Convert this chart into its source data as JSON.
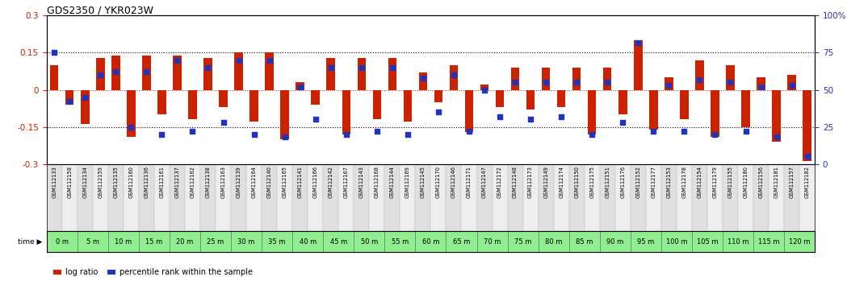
{
  "title": "GDS2350 / YKR023W",
  "gsm_labels": [
    "GSM112133",
    "GSM112158",
    "GSM112134",
    "GSM112159",
    "GSM112135",
    "GSM112160",
    "GSM112136",
    "GSM112161",
    "GSM112137",
    "GSM112162",
    "GSM112138",
    "GSM112163",
    "GSM112139",
    "GSM112164",
    "GSM112140",
    "GSM112165",
    "GSM112141",
    "GSM112166",
    "GSM112142",
    "GSM112167",
    "GSM112143",
    "GSM112168",
    "GSM112144",
    "GSM112169",
    "GSM112145",
    "GSM112170",
    "GSM112146",
    "GSM112171",
    "GSM112147",
    "GSM112172",
    "GSM112148",
    "GSM112173",
    "GSM112149",
    "GSM112174",
    "GSM112150",
    "GSM112175",
    "GSM112151",
    "GSM112176",
    "GSM112152",
    "GSM112177",
    "GSM112153",
    "GSM112178",
    "GSM112154",
    "GSM112179",
    "GSM112155",
    "GSM112180",
    "GSM112156",
    "GSM112181",
    "GSM112157",
    "GSM112182"
  ],
  "time_labels": [
    "0 m",
    "5 m",
    "10 m",
    "15 m",
    "20 m",
    "25 m",
    "30 m",
    "35 m",
    "40 m",
    "45 m",
    "50 m",
    "55 m",
    "60 m",
    "65 m",
    "70 m",
    "75 m",
    "80 m",
    "85 m",
    "90 m",
    "95 m",
    "100 m",
    "105 m",
    "110 m",
    "115 m",
    "120 m"
  ],
  "log_ratio": [
    0.1,
    -0.06,
    -0.14,
    0.13,
    0.14,
    -0.19,
    0.14,
    -0.1,
    0.14,
    -0.12,
    0.13,
    -0.07,
    0.15,
    -0.13,
    0.15,
    -0.2,
    0.03,
    -0.06,
    0.13,
    -0.18,
    0.13,
    -0.12,
    0.13,
    -0.13,
    0.07,
    -0.05,
    0.1,
    -0.17,
    0.02,
    -0.07,
    0.09,
    -0.08,
    0.09,
    -0.07,
    0.09,
    -0.18,
    0.09,
    -0.1,
    0.2,
    -0.16,
    0.05,
    -0.12,
    0.12,
    -0.19,
    0.1,
    -0.15,
    0.05,
    -0.21,
    0.06,
    -0.29
  ],
  "percentile_rank": [
    75,
    42,
    45,
    60,
    62,
    25,
    62,
    20,
    70,
    22,
    65,
    28,
    70,
    20,
    70,
    18,
    52,
    30,
    65,
    20,
    65,
    22,
    65,
    20,
    58,
    35,
    60,
    22,
    50,
    32,
    55,
    30,
    55,
    32,
    55,
    20,
    55,
    28,
    82,
    22,
    53,
    22,
    57,
    20,
    55,
    22,
    52,
    18,
    53,
    5
  ],
  "ylim_left": [
    -0.3,
    0.3
  ],
  "ylim_right": [
    0,
    100
  ],
  "bar_color": "#CC2200",
  "dot_color": "#2233BB",
  "zero_line_color": "#CC2200",
  "hline_color": "black",
  "background_color": "#ffffff",
  "cell_bg_even": "#e0e0e0",
  "cell_bg_odd": "#eeeeee",
  "time_area_color": "#90EE90",
  "time_border_color": "#666666"
}
